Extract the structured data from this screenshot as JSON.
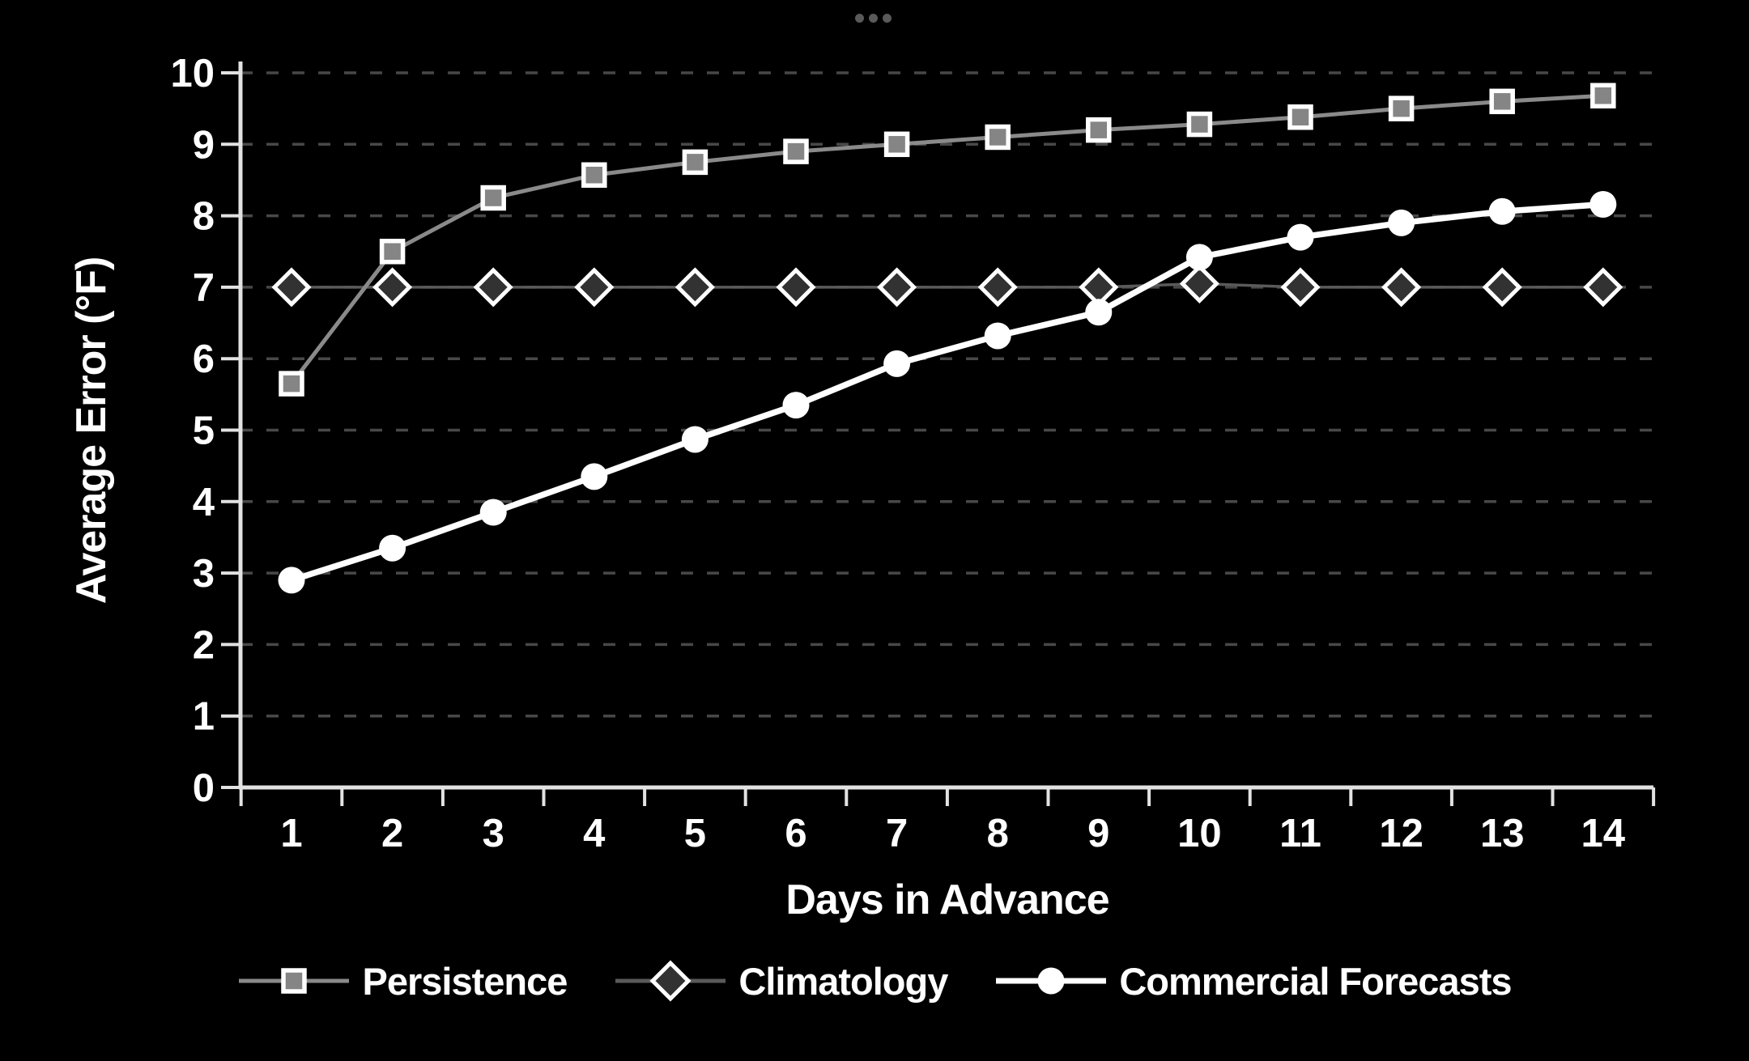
{
  "header": {
    "ellipsis_icon": "ellipsis-dots"
  },
  "colors": {
    "background": "#000000",
    "axis": "#e2e2e2",
    "grid": "#484848",
    "text": "#ffffff",
    "window_dots": "#5a5a5a"
  },
  "chart_data": {
    "type": "line",
    "title": "",
    "xlabel": "Days in Advance",
    "ylabel": "Average Error (°F)",
    "categories": [
      1,
      2,
      3,
      4,
      5,
      6,
      7,
      8,
      9,
      10,
      11,
      12,
      13,
      14
    ],
    "y_ticks": [
      0,
      1,
      2,
      3,
      4,
      5,
      6,
      7,
      8,
      9,
      10
    ],
    "ylim": [
      0,
      10
    ],
    "grid": "horizontal-dashed",
    "legend_position": "bottom",
    "series": [
      {
        "name": "Persistence",
        "marker": "square",
        "line_color": "#8a8a8a",
        "marker_fill": "#858585",
        "marker_stroke": "#ffffff",
        "values": [
          5.65,
          7.5,
          8.25,
          8.57,
          8.75,
          8.9,
          9.0,
          9.1,
          9.2,
          9.28,
          9.38,
          9.5,
          9.6,
          9.68
        ]
      },
      {
        "name": "Climatology",
        "marker": "diamond",
        "line_color": "#5a5a5a",
        "marker_fill": "#323232",
        "marker_stroke": "#ffffff",
        "values": [
          7,
          7,
          7,
          7,
          7,
          7,
          7,
          7,
          7,
          7.05,
          7,
          7,
          7,
          7
        ]
      },
      {
        "name": "Commercial Forecasts",
        "marker": "circle",
        "line_color": "#ffffff",
        "marker_fill": "#ffffff",
        "marker_stroke": "#ffffff",
        "values": [
          2.9,
          3.35,
          3.85,
          4.35,
          4.87,
          5.35,
          5.93,
          6.32,
          6.65,
          7.42,
          7.7,
          7.9,
          8.06,
          8.16
        ]
      }
    ]
  }
}
